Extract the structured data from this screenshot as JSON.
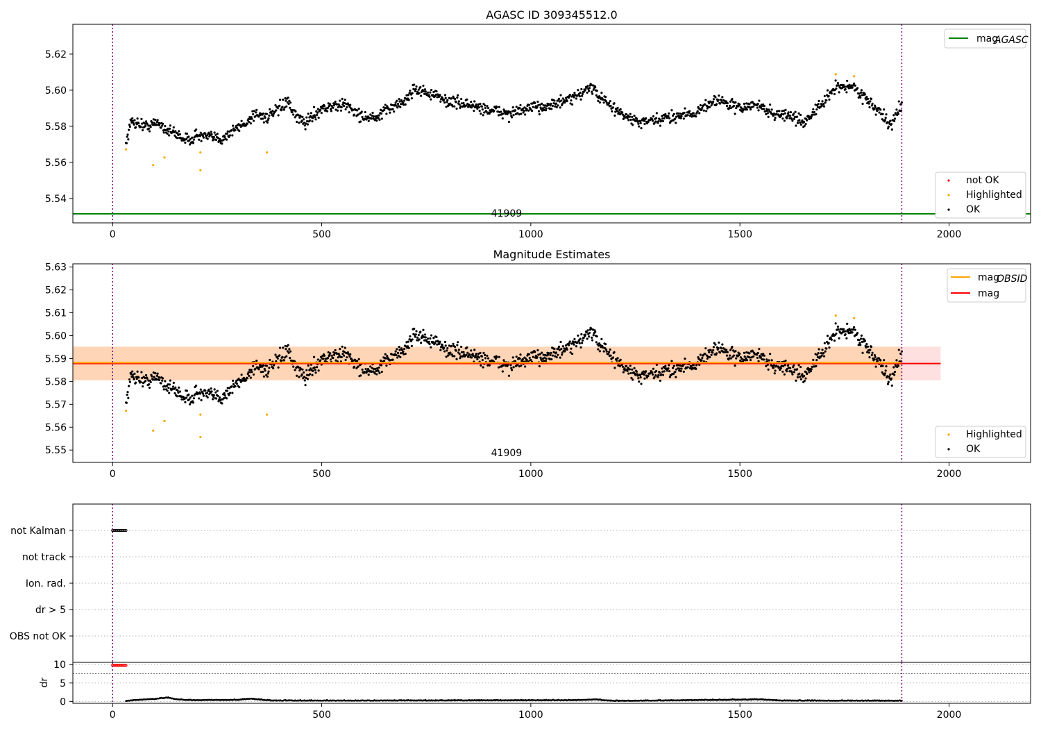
{
  "figure_title": "AGASC ID 309345512.0",
  "colors": {
    "ok": "#000000",
    "highlighted": "#ffa500",
    "not_ok": "#ff0000",
    "mag_agasc": "#008000",
    "mag_obsid": "#ffa500",
    "mag": "#ff0000",
    "band_obsid": "#ffa500",
    "band_mag": "#ff0000",
    "obs_bound": "#800080",
    "grid": "#b0b0b0"
  },
  "chart_data": [
    {
      "type": "scatter",
      "title": "AGASC ID 309345512.0",
      "xlabel": "",
      "ylabel": "",
      "xlim": [
        -95,
        2195
      ],
      "ylim": [
        5.5265,
        5.6365
      ],
      "xticks": [
        "0",
        "500",
        "1000",
        "1500",
        "2000"
      ],
      "yticks": [
        "5.54",
        "5.56",
        "5.58",
        "5.60",
        "5.62"
      ],
      "obsid_label": "41909",
      "obsid_x": 942,
      "obs_bounds": [
        0,
        1887
      ],
      "mag_agasc": 5.5315,
      "legend_lines": [
        {
          "label": "mag",
          "sub": "AGASC"
        }
      ],
      "legend_points": [
        "not OK",
        "Highlighted",
        "OK"
      ],
      "highlighted": [
        [
          32,
          5.5672
        ],
        [
          97,
          5.5585
        ],
        [
          124,
          5.5627
        ],
        [
          210,
          5.5655
        ],
        [
          210,
          5.5557
        ],
        [
          369,
          5.5655
        ],
        [
          1729,
          5.6088
        ],
        [
          1773,
          5.6077
        ]
      ],
      "ok_series": {
        "x_start": 32,
        "x_end": 1887,
        "count": 1350,
        "anchors": [
          [
            32,
            5.571
          ],
          [
            45,
            5.583
          ],
          [
            80,
            5.58
          ],
          [
            110,
            5.582
          ],
          [
            130,
            5.578
          ],
          [
            160,
            5.575
          ],
          [
            180,
            5.572
          ],
          [
            200,
            5.575
          ],
          [
            230,
            5.574
          ],
          [
            260,
            5.573
          ],
          [
            290,
            5.578
          ],
          [
            320,
            5.582
          ],
          [
            340,
            5.587
          ],
          [
            370,
            5.585
          ],
          [
            390,
            5.588
          ],
          [
            420,
            5.594
          ],
          [
            430,
            5.587
          ],
          [
            460,
            5.582
          ],
          [
            500,
            5.59
          ],
          [
            560,
            5.592
          ],
          [
            590,
            5.586
          ],
          [
            630,
            5.584
          ],
          [
            660,
            5.59
          ],
          [
            700,
            5.594
          ],
          [
            720,
            5.601
          ],
          [
            760,
            5.598
          ],
          [
            800,
            5.594
          ],
          [
            850,
            5.592
          ],
          [
            900,
            5.589
          ],
          [
            950,
            5.587
          ],
          [
            1000,
            5.59
          ],
          [
            1050,
            5.592
          ],
          [
            1100,
            5.595
          ],
          [
            1140,
            5.602
          ],
          [
            1180,
            5.593
          ],
          [
            1230,
            5.585
          ],
          [
            1260,
            5.582
          ],
          [
            1300,
            5.583
          ],
          [
            1350,
            5.586
          ],
          [
            1400,
            5.588
          ],
          [
            1440,
            5.595
          ],
          [
            1500,
            5.59
          ],
          [
            1540,
            5.592
          ],
          [
            1580,
            5.587
          ],
          [
            1620,
            5.586
          ],
          [
            1650,
            5.582
          ],
          [
            1700,
            5.593
          ],
          [
            1730,
            5.602
          ],
          [
            1770,
            5.602
          ],
          [
            1800,
            5.596
          ],
          [
            1840,
            5.586
          ],
          [
            1860,
            5.58
          ],
          [
            1887,
            5.593
          ]
        ]
      }
    },
    {
      "type": "scatter",
      "title": "Magnitude Estimates",
      "xlabel": "",
      "ylabel": "",
      "xlim": [
        -95,
        2195
      ],
      "ylim": [
        5.5446,
        5.6314
      ],
      "xticks": [
        "0",
        "500",
        "1000",
        "1500",
        "2000"
      ],
      "yticks": [
        "5.55",
        "5.56",
        "5.57",
        "5.58",
        "5.59",
        "5.60",
        "5.61",
        "5.62",
        "5.63"
      ],
      "obsid_label": "41909",
      "obsid_x": 942,
      "mag_obsid": 5.5882,
      "mag": 5.5878,
      "band_obsid": [
        5.5805,
        5.5952
      ],
      "band_mag": [
        5.5805,
        5.5952
      ],
      "band_obsid_x": [
        -95,
        1887
      ],
      "band_mag_x": [
        -95,
        1980
      ],
      "legend_lines": [
        {
          "label": "mag",
          "sub": "OBSID"
        },
        {
          "label": "mag",
          "sub": ""
        }
      ],
      "legend_points": [
        "Highlighted",
        "OK"
      ]
    },
    {
      "type": "scatter",
      "title": "",
      "xlim": [
        -95,
        2195
      ],
      "flag_labels": [
        "not Kalman",
        "not track",
        "Ion. rad.",
        "dr > 5",
        "OBS not OK"
      ],
      "flag_points": {
        "category": "not Kalman",
        "x_start": 0,
        "x_end": 32,
        "count": 14
      }
    },
    {
      "type": "scatter",
      "title": "",
      "ylabel": "dr",
      "xlim": [
        -95,
        2195
      ],
      "ylim": [
        -0.5,
        10.6
      ],
      "xticks": [
        "0",
        "500",
        "1000",
        "1500",
        "2000"
      ],
      "yticks": [
        "0",
        "5",
        "10"
      ],
      "outliers": {
        "x_start": 0,
        "x_end": 32,
        "count": 14,
        "value": 9.8
      },
      "dr_series": {
        "x_start": 32,
        "x_end": 1887,
        "count": 900,
        "anchors": [
          [
            32,
            0.1
          ],
          [
            60,
            0.4
          ],
          [
            100,
            0.6
          ],
          [
            130,
            1.0
          ],
          [
            150,
            0.6
          ],
          [
            180,
            0.3
          ],
          [
            300,
            0.4
          ],
          [
            330,
            0.7
          ],
          [
            380,
            0.2
          ],
          [
            600,
            0.2
          ],
          [
            1100,
            0.3
          ],
          [
            1150,
            0.5
          ],
          [
            1200,
            0.1
          ],
          [
            1550,
            0.5
          ],
          [
            1600,
            0.2
          ],
          [
            1887,
            0.15
          ]
        ]
      }
    }
  ]
}
